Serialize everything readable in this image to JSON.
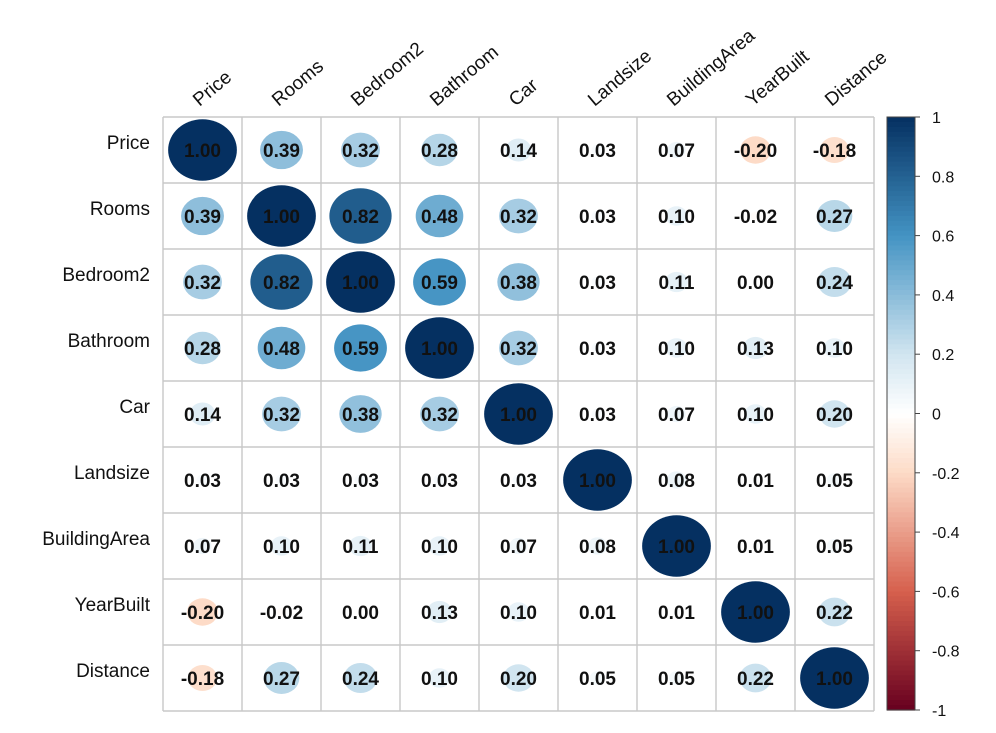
{
  "chart_data": {
    "type": "heatmap",
    "variables": [
      "Price",
      "Rooms",
      "Bedroom2",
      "Bathroom",
      "Car",
      "Landsize",
      "BuildingArea",
      "YearBuilt",
      "Distance"
    ],
    "matrix": [
      [
        1.0,
        0.39,
        0.32,
        0.28,
        0.14,
        0.03,
        0.07,
        -0.2,
        -0.18
      ],
      [
        0.39,
        1.0,
        0.82,
        0.48,
        0.32,
        0.03,
        0.1,
        -0.02,
        0.27
      ],
      [
        0.32,
        0.82,
        1.0,
        0.59,
        0.38,
        0.03,
        0.11,
        0.0,
        0.24
      ],
      [
        0.28,
        0.48,
        0.59,
        1.0,
        0.32,
        0.03,
        0.1,
        0.13,
        0.1
      ],
      [
        0.14,
        0.32,
        0.38,
        0.32,
        1.0,
        0.03,
        0.07,
        0.1,
        0.2
      ],
      [
        0.03,
        0.03,
        0.03,
        0.03,
        0.03,
        1.0,
        0.08,
        0.01,
        0.05
      ],
      [
        0.07,
        0.1,
        0.11,
        0.1,
        0.07,
        0.08,
        1.0,
        0.01,
        0.05
      ],
      [
        -0.2,
        -0.02,
        0.0,
        0.13,
        0.1,
        0.01,
        0.01,
        1.0,
        0.22
      ],
      [
        -0.18,
        0.27,
        0.24,
        0.1,
        0.2,
        0.05,
        0.05,
        0.22,
        1.0
      ]
    ],
    "colorbar": {
      "range": [
        -1,
        1
      ],
      "ticks": [
        "1",
        "0.8",
        "0.6",
        "0.4",
        "0.2",
        "0",
        "-0.2",
        "-0.4",
        "-0.6",
        "-0.8",
        "-1"
      ]
    },
    "palette": {
      "neg_strong": "#67001f",
      "neg_mid": "#d6604d",
      "neg_light": "#fddbc7",
      "neutral": "#ffffff",
      "pos_light": "#d1e5f0",
      "pos_mid": "#4393c3",
      "pos_strong": "#053061"
    },
    "grid": true,
    "legend": "right"
  }
}
